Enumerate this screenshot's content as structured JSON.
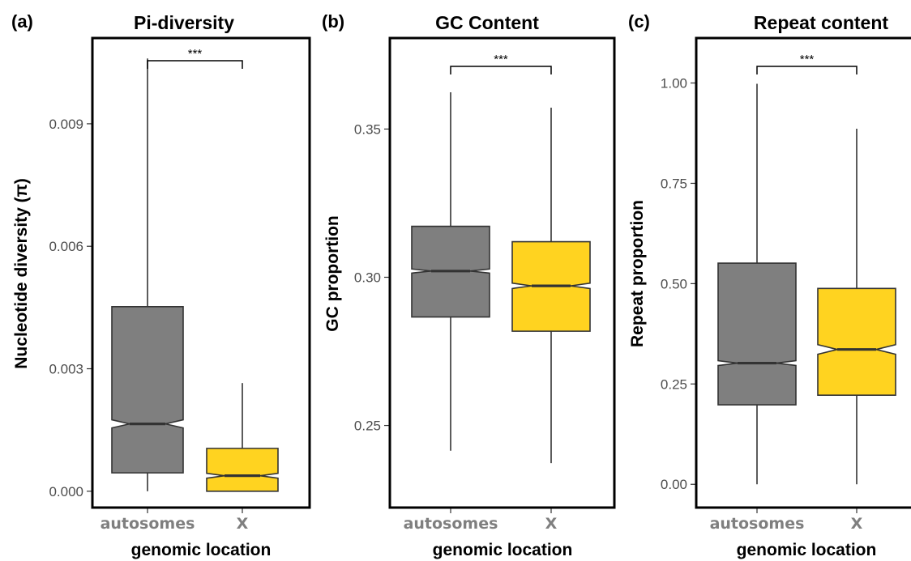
{
  "figure": {
    "xlabel": "genomic location"
  },
  "chart_data": [
    {
      "type": "boxplot",
      "panel_label": "(a)",
      "title": "Pi-diversity",
      "xlabel": "genomic location",
      "ylabel": "Nucleotide diversity (π)",
      "categories": [
        "autosomes",
        "X"
      ],
      "colors": [
        "#7f7f7f",
        "#ffd320"
      ],
      "notched": true,
      "ylim": [
        -0.0004,
        0.0111
      ],
      "yticks": [
        0.0,
        0.003,
        0.006,
        0.009
      ],
      "ytick_labels": [
        "0.000",
        "0.003",
        "0.006",
        "0.009"
      ],
      "boxes": [
        {
          "category": "autosomes",
          "whisker_low": 0.0,
          "q1": 0.00045,
          "median": 0.00165,
          "q3": 0.00452,
          "whisker_high": 0.0106,
          "notch_low": 0.00155,
          "notch_high": 0.00175
        },
        {
          "category": "X",
          "whisker_low": 0.0,
          "q1": 0.0,
          "median": 0.00038,
          "q3": 0.00105,
          "whisker_high": 0.00265,
          "notch_low": 0.00032,
          "notch_high": 0.00044
        }
      ],
      "significance": "***"
    },
    {
      "type": "boxplot",
      "panel_label": "(b)",
      "title": "GC Content",
      "xlabel": "genomic location",
      "ylabel": "GC proportion",
      "categories": [
        "autosomes",
        "X"
      ],
      "colors": [
        "#7f7f7f",
        "#ffd320"
      ],
      "notched": true,
      "ylim": [
        0.2223,
        0.3807
      ],
      "yticks": [
        0.25,
        0.3,
        0.35
      ],
      "ytick_labels": [
        "0.25",
        "0.30",
        "0.35"
      ],
      "boxes": [
        {
          "category": "autosomes",
          "whisker_low": 0.2415,
          "q1": 0.2866,
          "median": 0.3021,
          "q3": 0.3172,
          "whisker_high": 0.3624,
          "notch_low": 0.3014,
          "notch_high": 0.3028
        },
        {
          "category": "X",
          "whisker_low": 0.2373,
          "q1": 0.2818,
          "median": 0.2971,
          "q3": 0.312,
          "whisker_high": 0.3572,
          "notch_low": 0.2962,
          "notch_high": 0.298
        }
      ],
      "significance": "***"
    },
    {
      "type": "boxplot",
      "panel_label": "(c)",
      "title": "Repeat content",
      "xlabel": "genomic location",
      "ylabel": "Repeat proportion",
      "categories": [
        "autosomes",
        "X"
      ],
      "colors": [
        "#7f7f7f",
        "#ffd320"
      ],
      "notched": true,
      "ylim": [
        -0.058,
        1.112
      ],
      "yticks": [
        0.0,
        0.25,
        0.5,
        0.75,
        1.0
      ],
      "ytick_labels": [
        "0.00",
        "0.25",
        "0.50",
        "0.75",
        "1.00"
      ],
      "boxes": [
        {
          "category": "autosomes",
          "whisker_low": 0.0,
          "q1": 0.198,
          "median": 0.302,
          "q3": 0.551,
          "whisker_high": 0.998,
          "notch_low": 0.296,
          "notch_high": 0.308
        },
        {
          "category": "X",
          "whisker_low": 0.0,
          "q1": 0.222,
          "median": 0.336,
          "q3": 0.488,
          "whisker_high": 0.886,
          "notch_low": 0.324,
          "notch_high": 0.348
        }
      ],
      "significance": "***"
    }
  ]
}
